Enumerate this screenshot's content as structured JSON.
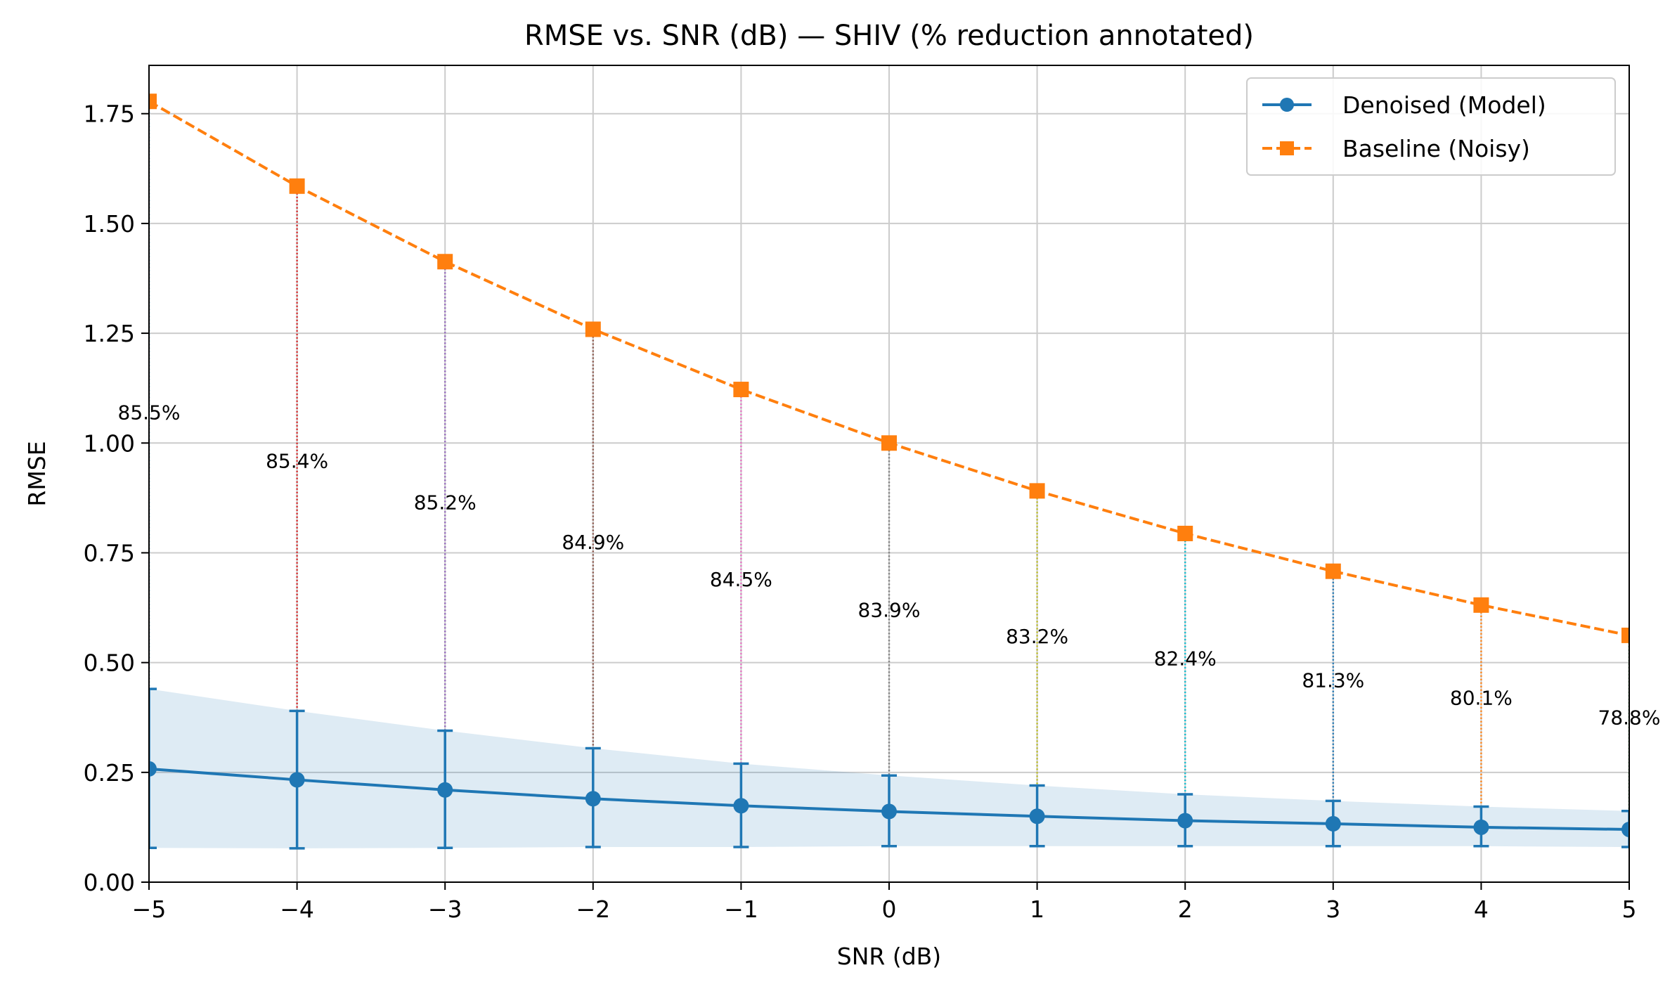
{
  "chart_data": {
    "type": "line",
    "title": "RMSE vs. SNR (dB) — SHIV (% reduction annotated)",
    "xlabel": "SNR (dB)",
    "ylabel": "RMSE",
    "xlim": [
      -5,
      5
    ],
    "ylim": [
      0,
      1.86
    ],
    "grid": true,
    "legend_position": "top-right",
    "x": [
      -5,
      -4,
      -3,
      -2,
      -1,
      0,
      1,
      2,
      3,
      4,
      5
    ],
    "x_tick_labels": [
      "−5",
      "−4",
      "−3",
      "−2",
      "−1",
      "0",
      "1",
      "2",
      "3",
      "4",
      "5"
    ],
    "y_ticks": [
      0,
      0.25,
      0.5,
      0.75,
      1.0,
      1.25,
      1.5,
      1.75
    ],
    "y_tick_labels": [
      "0.00",
      "0.25",
      "0.50",
      "0.75",
      "1.00",
      "1.25",
      "1.50",
      "1.75"
    ],
    "series": [
      {
        "name": "Denoised (Model)",
        "color": "#1f77b4",
        "marker": "circle",
        "linestyle": "solid",
        "values": [
          0.258,
          0.233,
          0.21,
          0.19,
          0.174,
          0.161,
          0.15,
          0.14,
          0.133,
          0.125,
          0.12
        ],
        "error_upper": [
          0.44,
          0.39,
          0.345,
          0.305,
          0.27,
          0.243,
          0.22,
          0.2,
          0.185,
          0.172,
          0.162
        ],
        "error_lower": [
          0.078,
          0.077,
          0.078,
          0.08,
          0.08,
          0.082,
          0.082,
          0.082,
          0.082,
          0.082,
          0.08
        ]
      },
      {
        "name": "Baseline (Noisy)",
        "color": "#ff7f0e",
        "marker": "square",
        "linestyle": "dashed",
        "values": [
          1.778,
          1.585,
          1.413,
          1.259,
          1.122,
          1.0,
          0.891,
          0.794,
          0.708,
          0.631,
          0.562
        ]
      }
    ],
    "band": {
      "upper": [
        0.44,
        0.39,
        0.345,
        0.305,
        0.27,
        0.243,
        0.22,
        0.2,
        0.185,
        0.172,
        0.162
      ],
      "lower": [
        0.078,
        0.077,
        0.078,
        0.08,
        0.08,
        0.082,
        0.082,
        0.082,
        0.082,
        0.082,
        0.08
      ],
      "color": "#1f77b4"
    },
    "annotations": [
      "85.5%",
      "85.4%",
      "85.2%",
      "84.9%",
      "84.5%",
      "83.9%",
      "83.2%",
      "82.4%",
      "81.3%",
      "80.1%",
      "78.8%"
    ],
    "annotation_y": [
      1.07,
      0.96,
      0.865,
      0.775,
      0.69,
      0.62,
      0.56,
      0.51,
      0.46,
      0.42,
      0.375
    ],
    "connector_colors": [
      "#1f77b4",
      "#d62728",
      "#9467bd",
      "#8c564b",
      "#e377c2",
      "#7f7f7f",
      "#bcbd22",
      "#17becf",
      "#1f77b4",
      "#ff7f0e",
      "#2ca02c"
    ]
  }
}
